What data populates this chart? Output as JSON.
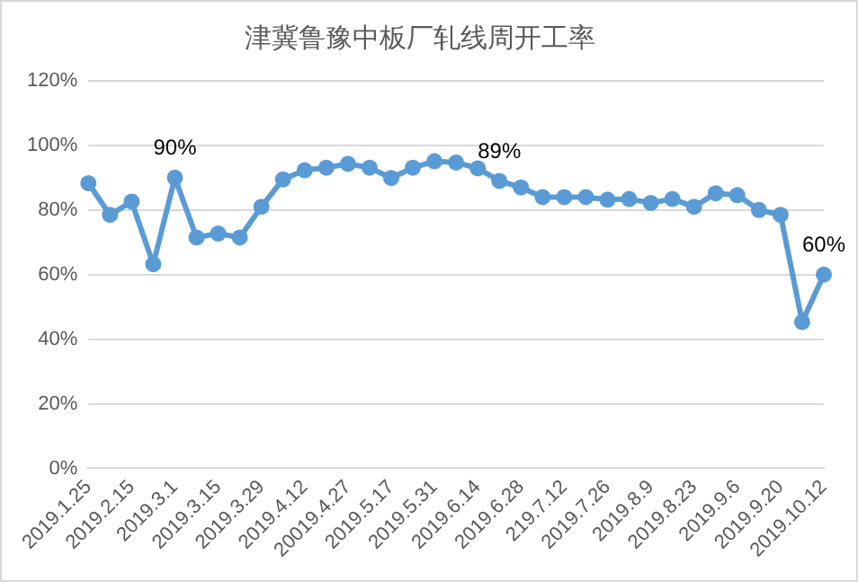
{
  "chart_data": {
    "type": "line",
    "title": "津冀鲁豫中板厂轧线周开工率",
    "categories": [
      "2019.1.25",
      null,
      "2019.2.15",
      null,
      "2019.3.1",
      null,
      "2019.3.15",
      null,
      "2019.3.29",
      null,
      "2019.4.12",
      null,
      "20019.4.27",
      null,
      "2019.5.17",
      null,
      "2019.5.31",
      null,
      "2019.6.14",
      null,
      "2019.6.28",
      null,
      "219.7.12",
      null,
      "2019.7.26",
      null,
      "2019.8.9",
      null,
      "2019.8.23",
      null,
      "2019.9.6",
      null,
      "2019.9.20",
      null,
      "2019.10.12"
    ],
    "series": [
      {
        "color": "#5b9bd5",
        "values": [
          88.3,
          78.5,
          82.6,
          63.2,
          90,
          71.5,
          72.7,
          71.5,
          81,
          89.5,
          92.3,
          93.1,
          94.3,
          93.1,
          89.9,
          93.1,
          95.1,
          94.7,
          92.9,
          89,
          87,
          84,
          84,
          84,
          83.2,
          83.4,
          82.2,
          83.4,
          81,
          85.2,
          84.6,
          80,
          78.5,
          45.3,
          60
        ],
        "value_labels": [
          null,
          null,
          null,
          null,
          "90%",
          null,
          null,
          null,
          null,
          null,
          null,
          null,
          null,
          null,
          null,
          null,
          null,
          null,
          null,
          "89%",
          null,
          null,
          null,
          null,
          null,
          null,
          null,
          null,
          null,
          null,
          null,
          null,
          null,
          null,
          "60%"
        ]
      }
    ],
    "ylim": [
      0,
      120
    ],
    "yticks": [
      {
        "value": 0,
        "label": "0%"
      },
      {
        "value": 20,
        "label": "20%"
      },
      {
        "value": 40,
        "label": "40%"
      },
      {
        "value": 60,
        "label": "60%"
      },
      {
        "value": 80,
        "label": "80%"
      },
      {
        "value": 100,
        "label": "100%"
      },
      {
        "value": 120,
        "label": "120%"
      }
    ],
    "grid": "y",
    "legend": false,
    "marker": "circle",
    "line_style": "solid"
  }
}
